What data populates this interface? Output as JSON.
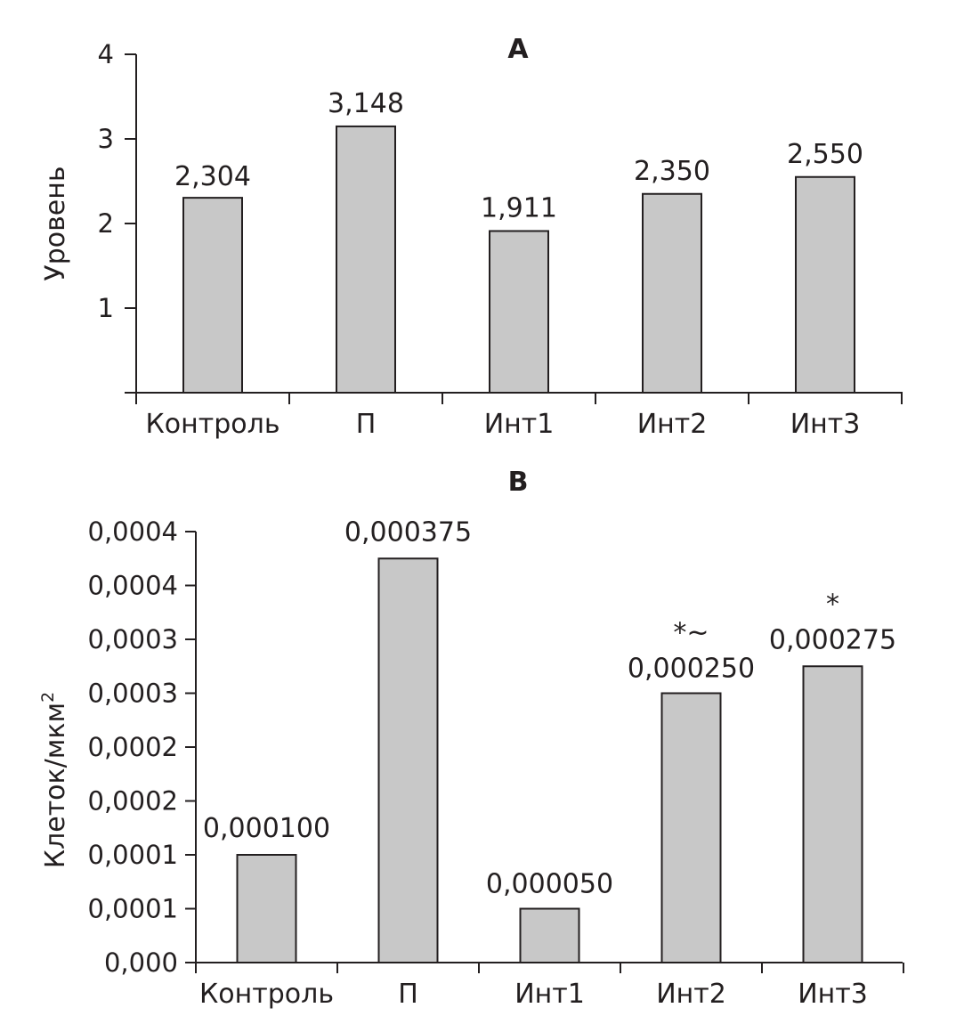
{
  "chart_data": [
    {
      "type": "bar",
      "title": "A",
      "xlabel": "",
      "ylabel": "Уровень",
      "categories": [
        "Контроль",
        "П",
        "Инт1",
        "Инт2",
        "Инт3"
      ],
      "values": [
        2.304,
        3.148,
        1.911,
        2.35,
        2.55
      ],
      "data_labels": [
        "2,304",
        "3,148",
        "1,911",
        "2,350",
        "2,550"
      ],
      "annotations": [
        "",
        "",
        "",
        "",
        ""
      ],
      "ylim": [
        0,
        4
      ],
      "yticks": [
        1,
        2,
        3,
        4
      ],
      "ytick_labels": [
        "1",
        "2",
        "3",
        "4"
      ],
      "bar_color": "#c8c8c8",
      "grid": false
    },
    {
      "type": "bar",
      "title": "B",
      "xlabel": "",
      "ylabel": "Клеток/мкм",
      "ylabel_sup": "2",
      "categories": [
        "Контроль",
        "П",
        "Инт1",
        "Инт2",
        "Инт3"
      ],
      "values": [
        0.0001,
        0.000375,
        5e-05,
        0.00025,
        0.000275
      ],
      "data_labels": [
        "0,000100",
        "0,000375",
        "0,000050",
        "0,000250",
        "0,000275"
      ],
      "annotations": [
        "",
        "",
        "",
        "*~",
        "*"
      ],
      "ylim": [
        0,
        0.0004
      ],
      "yticks": [
        0,
        5e-05,
        0.0001,
        0.00015,
        0.0002,
        0.00025,
        0.0003,
        0.00035,
        0.0004
      ],
      "ytick_labels": [
        "0,000",
        "0,0001",
        "0,0001",
        "0,0002",
        "0,0002",
        "0,0003",
        "0,0003",
        "0,0004",
        "0,0004"
      ],
      "bar_color": "#c8c8c8",
      "grid": false
    }
  ]
}
